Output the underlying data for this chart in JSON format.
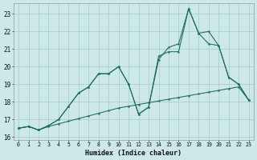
{
  "xlabel": "Humidex (Indice chaleur)",
  "background_color": "#cce8e8",
  "grid_color": "#aacece",
  "line_color": "#1a6b5a",
  "xlim": [
    -0.5,
    23.5
  ],
  "ylim": [
    15.85,
    23.6
  ],
  "yticks": [
    16,
    17,
    18,
    19,
    20,
    21,
    22,
    23
  ],
  "xticks": [
    0,
    1,
    2,
    3,
    4,
    5,
    6,
    7,
    8,
    9,
    10,
    11,
    12,
    13,
    14,
    15,
    16,
    17,
    18,
    19,
    20,
    21,
    22,
    23
  ],
  "series1_x": [
    0,
    1,
    2,
    3,
    4,
    5,
    6,
    7,
    8,
    9,
    10,
    11,
    12,
    13,
    14,
    15,
    16,
    17,
    18,
    19,
    20,
    21,
    22,
    23
  ],
  "series1_y": [
    16.5,
    16.6,
    16.4,
    16.6,
    16.75,
    16.9,
    17.05,
    17.2,
    17.35,
    17.5,
    17.65,
    17.75,
    17.85,
    17.95,
    18.05,
    18.15,
    18.25,
    18.35,
    18.45,
    18.55,
    18.65,
    18.75,
    18.85,
    18.1
  ],
  "series2_x": [
    0,
    1,
    2,
    3,
    4,
    5,
    6,
    7,
    8,
    9,
    10,
    11,
    12,
    13,
    14,
    15,
    16,
    17,
    18,
    19,
    20,
    21,
    22,
    23
  ],
  "series2_y": [
    16.5,
    16.6,
    16.4,
    16.65,
    17.0,
    17.75,
    18.5,
    18.85,
    19.6,
    19.6,
    20.0,
    19.0,
    17.3,
    17.7,
    20.6,
    20.85,
    20.85,
    23.3,
    21.9,
    22.0,
    21.2,
    19.4,
    19.0,
    18.1
  ],
  "series3_x": [
    0,
    1,
    2,
    3,
    4,
    5,
    6,
    7,
    8,
    9,
    10,
    11,
    12,
    13,
    14,
    15,
    16,
    17,
    18,
    19,
    20,
    21,
    22,
    23
  ],
  "series3_y": [
    16.5,
    16.6,
    16.4,
    16.65,
    17.0,
    17.75,
    18.5,
    18.85,
    19.6,
    19.6,
    20.0,
    19.0,
    17.3,
    17.7,
    20.4,
    21.1,
    21.3,
    23.3,
    21.9,
    21.3,
    21.2,
    19.4,
    19.0,
    18.1
  ]
}
